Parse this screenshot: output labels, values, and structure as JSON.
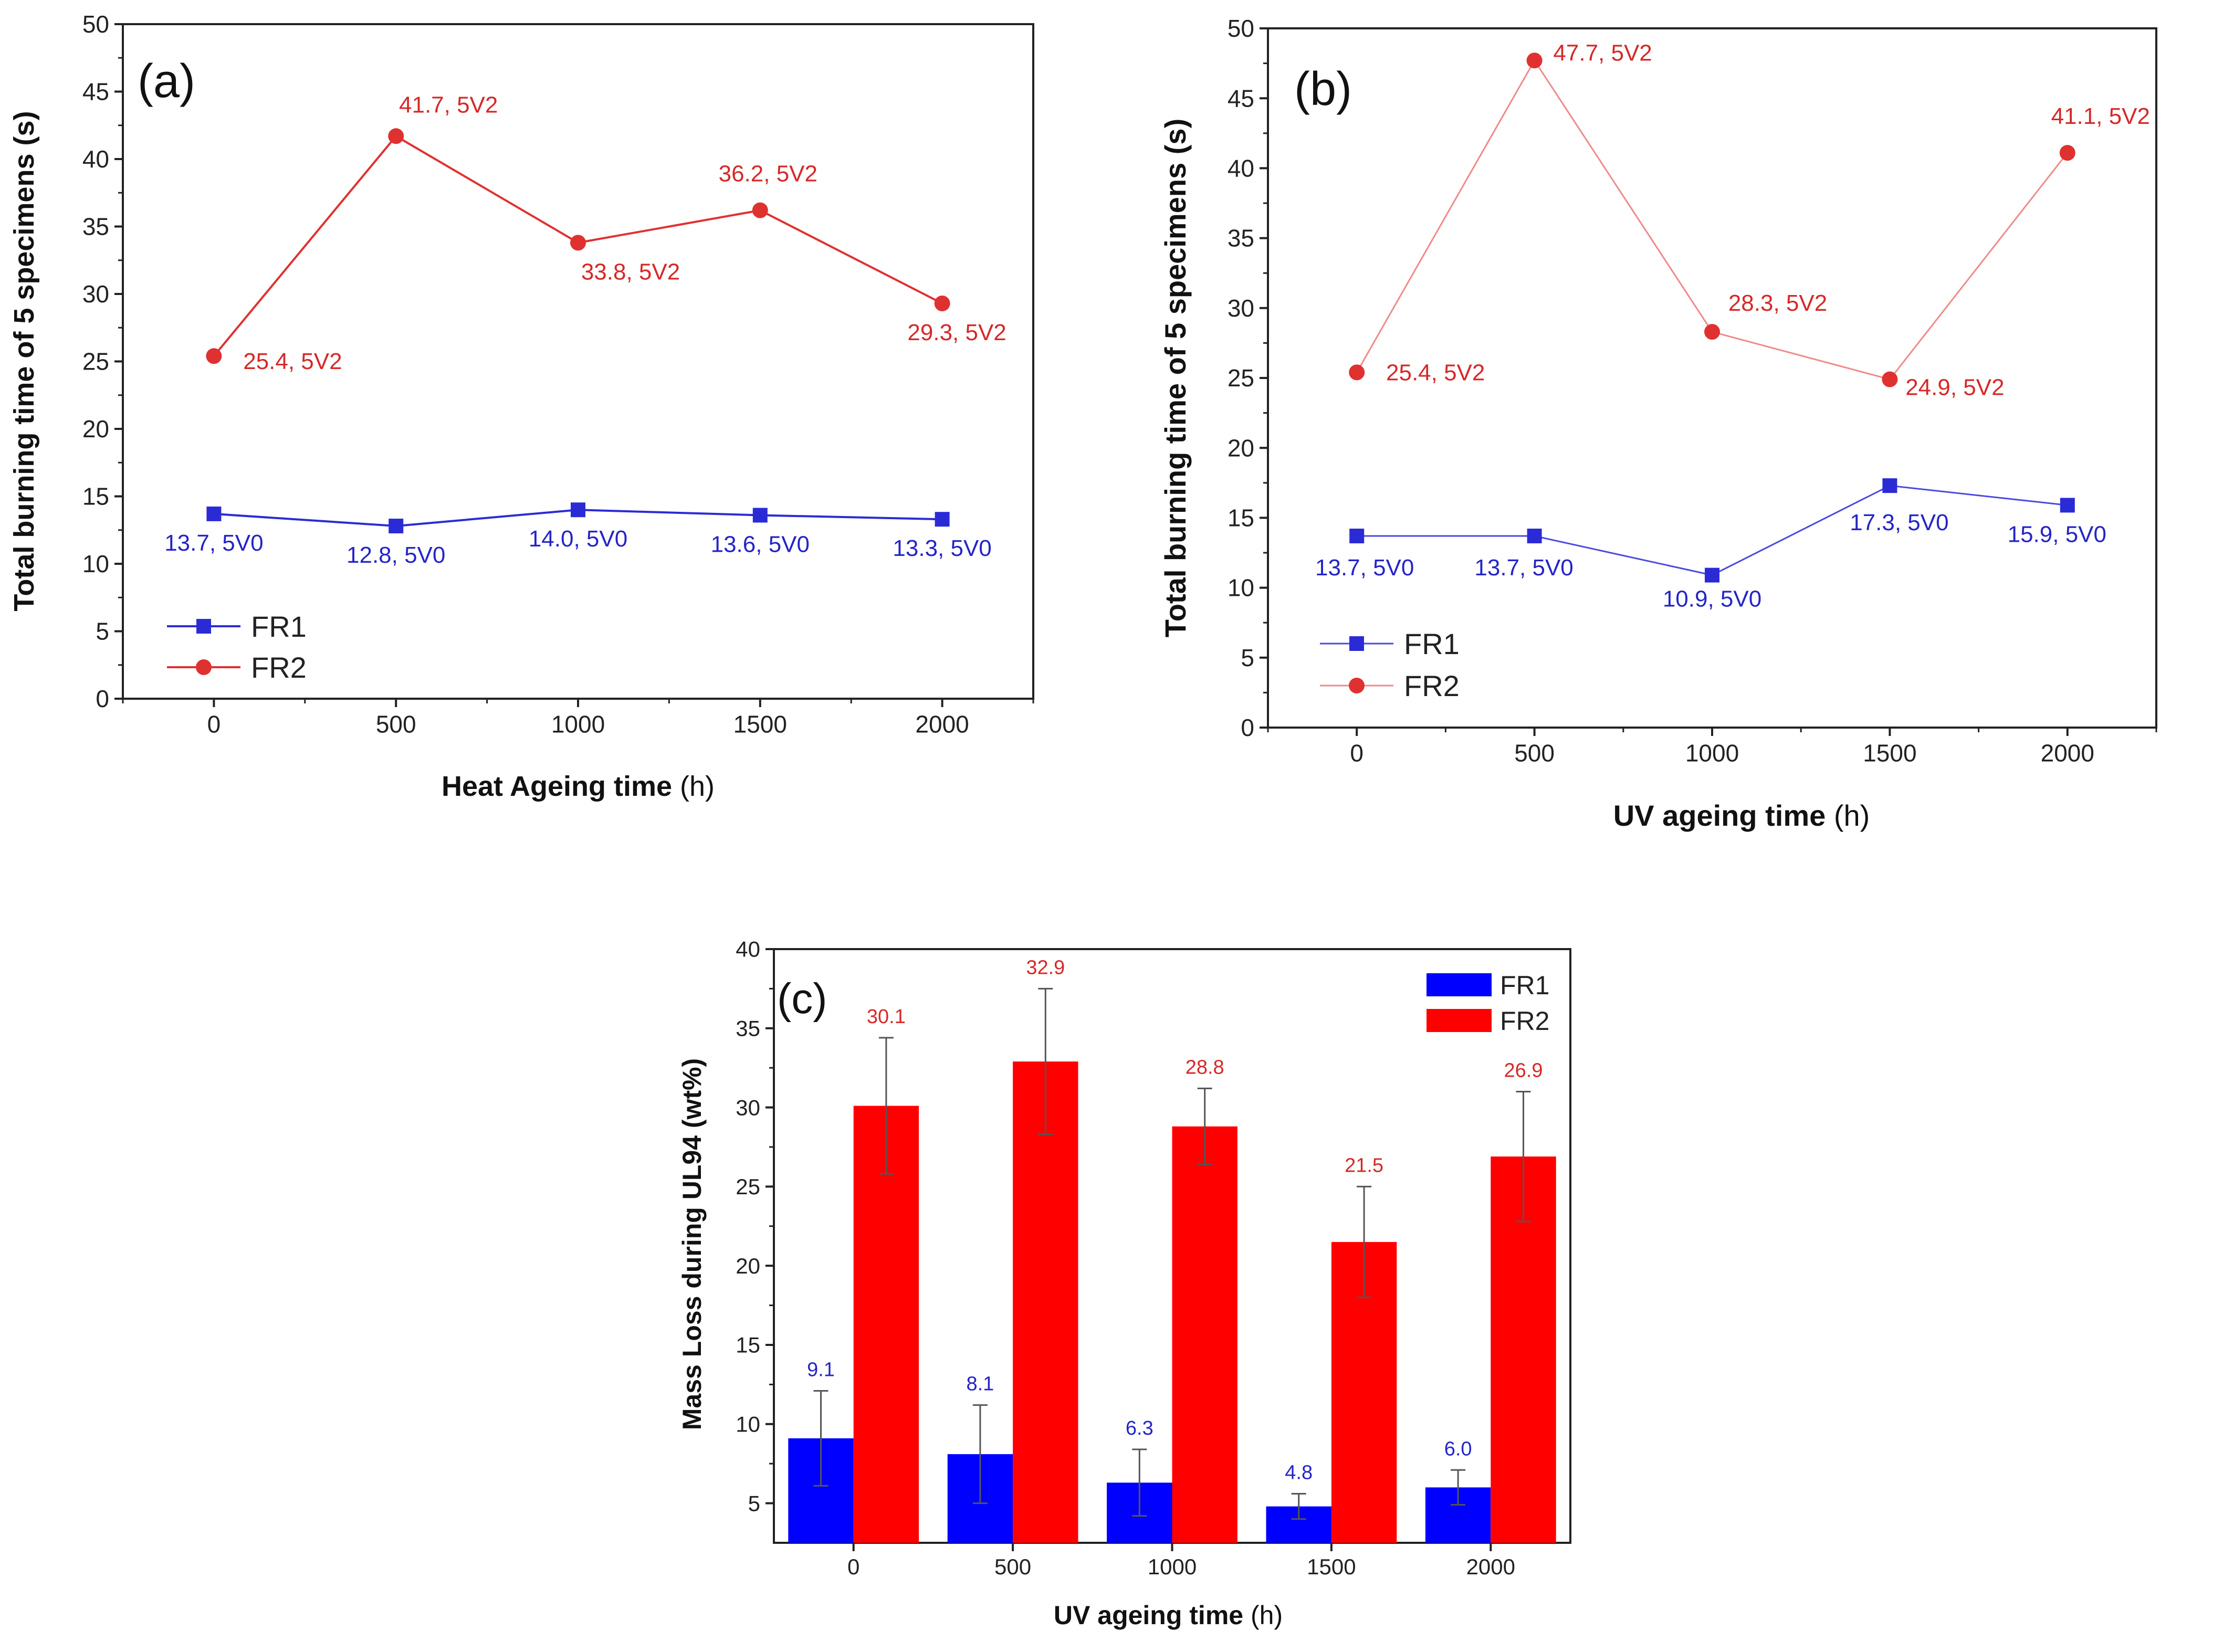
{
  "chart_data": [
    {
      "type": "line",
      "panel": "(a)",
      "xlabel_bold": "Heat Ageing time",
      "xlabel_unit": " (h)",
      "ylabel": "Total burning time of 5 specimens (s)",
      "x": [
        0,
        500,
        1000,
        1500,
        2000
      ],
      "xticks": [
        "0",
        "500",
        "1000",
        "1500",
        "2000"
      ],
      "xlim": [
        -250,
        2250
      ],
      "ylim": [
        0,
        50
      ],
      "yticks": [
        "0",
        "5",
        "10",
        "15",
        "20",
        "25",
        "30",
        "35",
        "40",
        "45",
        "50"
      ],
      "legend_position": "bottom-left",
      "series": [
        {
          "name": "FR1",
          "color": "#2b2bd6",
          "marker": "square",
          "values": [
            13.7,
            12.8,
            14.0,
            13.6,
            13.3
          ],
          "labels": [
            "13.7, 5V0",
            "12.8, 5V0",
            "14.0, 5V0",
            "13.6, 5V0",
            "13.3, 5V0"
          ]
        },
        {
          "name": "FR2",
          "color": "#e03131",
          "marker": "circle",
          "values": [
            25.4,
            41.7,
            33.8,
            36.2,
            29.3
          ],
          "labels": [
            "25.4, 5V2",
            "41.7, 5V2",
            "33.8, 5V2",
            "36.2, 5V2",
            "29.3, 5V2"
          ]
        }
      ]
    },
    {
      "type": "line",
      "panel": "(b)",
      "xlabel_bold": "UV ageing time",
      "xlabel_unit": " (h)",
      "ylabel": "Total burning time of 5 specimens (s)",
      "x": [
        0,
        500,
        1000,
        1500,
        2000
      ],
      "xticks": [
        "0",
        "500",
        "1000",
        "1500",
        "2000"
      ],
      "xlim": [
        -250,
        2250
      ],
      "ylim": [
        0,
        50
      ],
      "yticks": [
        "0",
        "5",
        "10",
        "15",
        "20",
        "25",
        "30",
        "35",
        "40",
        "45",
        "50"
      ],
      "legend_position": "bottom-left",
      "series": [
        {
          "name": "FR1",
          "color": "#2b2bd6",
          "line_color": "#4a4ae0",
          "marker": "square",
          "values": [
            13.7,
            13.7,
            10.9,
            17.3,
            15.9
          ],
          "labels": [
            "13.7, 5V0",
            "13.7, 5V0",
            "10.9, 5V0",
            "17.3, 5V0",
            "15.9, 5V0"
          ]
        },
        {
          "name": "FR2",
          "color": "#e03131",
          "line_color": "#f08a8a",
          "marker": "circle",
          "values": [
            25.4,
            47.7,
            28.3,
            24.9,
            41.1
          ],
          "labels": [
            "25.4, 5V2",
            "47.7, 5V2",
            "28.3, 5V2",
            "24.9, 5V2",
            "41.1, 5V2"
          ]
        }
      ]
    },
    {
      "type": "bar",
      "panel": "(c)",
      "xlabel_bold": "UV ageing time",
      "xlabel_unit": " (h)",
      "ylabel": "Mass Loss during UL94 (wt%)",
      "categories": [
        "0",
        "500",
        "1000",
        "1500",
        "2000"
      ],
      "ylim": [
        2.5,
        40
      ],
      "yticks": [
        "5",
        "10",
        "15",
        "20",
        "25",
        "30",
        "35",
        "40"
      ],
      "legend_position": "top-right",
      "series": [
        {
          "name": "FR1",
          "color": "#0000ff",
          "values": [
            9.1,
            8.1,
            6.3,
            4.8,
            6.0
          ],
          "errors": [
            3.0,
            3.1,
            2.1,
            0.8,
            1.1
          ],
          "labels": [
            "9.1",
            "8.1",
            "6.3",
            "4.8",
            "6.0"
          ]
        },
        {
          "name": "FR2",
          "color": "#ff0000",
          "values": [
            30.1,
            32.9,
            28.8,
            21.5,
            26.9
          ],
          "errors": [
            4.3,
            4.6,
            2.4,
            3.5,
            4.1
          ],
          "labels": [
            "30.1",
            "32.9",
            "28.8",
            "21.5",
            "26.9"
          ]
        }
      ]
    }
  ]
}
